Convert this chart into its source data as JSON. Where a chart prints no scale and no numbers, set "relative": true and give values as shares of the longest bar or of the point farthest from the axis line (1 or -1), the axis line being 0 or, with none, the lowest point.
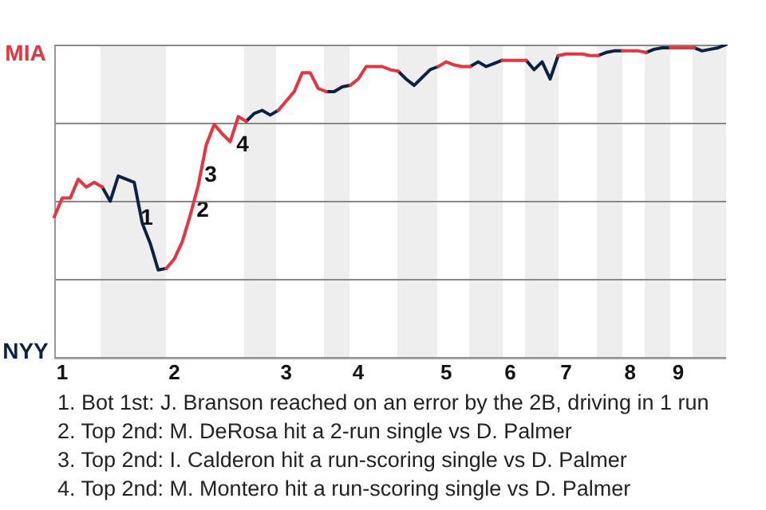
{
  "chart_data": {
    "type": "line",
    "relative": true,
    "categories": [
      null,
      "1",
      null,
      null,
      null,
      null,
      null,
      null,
      null,
      null,
      null,
      null,
      null,
      null,
      null,
      "2",
      null,
      null,
      null,
      null,
      null,
      null,
      null,
      null,
      null,
      null,
      null,
      null,
      null,
      "3",
      null,
      null,
      null,
      null,
      null,
      null,
      null,
      null,
      "4",
      null,
      null,
      null,
      null,
      null,
      null,
      null,
      null,
      null,
      null,
      "5",
      null,
      null,
      null,
      null,
      null,
      null,
      null,
      "6",
      null,
      null,
      null,
      null,
      null,
      null,
      "7",
      null,
      null,
      null,
      null,
      null,
      null,
      null,
      "8",
      null,
      null,
      null,
      null,
      null,
      "9",
      null,
      null,
      null,
      null,
      null,
      null
    ],
    "grid": "y",
    "legend": false,
    "marker": "none",
    "line_style": "solid",
    "series": [
      {
        "color": "#e8343f",
        "values": [
          0.45,
          0.51,
          0.51,
          0.57,
          0.545,
          0.56,
          0.545,
          null,
          null,
          null,
          null,
          null,
          null,
          null,
          0.285,
          0.315,
          0.37,
          0.455,
          0.55,
          0.68,
          0.745,
          0.715,
          0.69,
          0.77,
          0.755,
          null,
          null,
          null,
          0.79,
          0.82,
          0.85,
          0.91,
          0.91,
          0.86,
          0.85,
          null,
          null,
          0.87,
          0.89,
          0.93,
          0.93,
          0.93,
          0.92,
          0.915,
          null,
          null,
          null,
          null,
          0.93,
          0.945,
          0.935,
          0.93,
          0.93,
          null,
          null,
          null,
          0.95,
          0.95,
          0.95,
          0.95,
          null,
          null,
          null,
          0.965,
          0.97,
          0.97,
          0.97,
          0.965,
          0.965,
          null,
          null,
          0.98,
          0.98,
          0.98,
          0.975,
          null,
          null,
          0.99,
          0.99,
          0.99,
          0.99,
          null,
          null,
          null,
          null
        ]
      },
      {
        "color": "#0c2340",
        "values": [
          null,
          null,
          null,
          null,
          null,
          null,
          0.545,
          0.5,
          0.58,
          0.57,
          0.56,
          0.43,
          0.365,
          0.28,
          0.285,
          null,
          null,
          null,
          null,
          null,
          null,
          null,
          null,
          null,
          0.755,
          0.78,
          0.79,
          0.775,
          0.79,
          null,
          null,
          null,
          null,
          null,
          0.85,
          0.85,
          0.865,
          0.87,
          null,
          null,
          null,
          null,
          null,
          0.915,
          0.89,
          0.87,
          0.895,
          0.92,
          0.93,
          null,
          null,
          null,
          0.93,
          0.945,
          0.93,
          0.94,
          0.95,
          null,
          null,
          0.95,
          0.92,
          0.945,
          0.89,
          0.965,
          null,
          null,
          null,
          null,
          0.965,
          0.975,
          0.98,
          0.98,
          null,
          null,
          0.975,
          0.985,
          0.99,
          0.99,
          null,
          null,
          0.99,
          0.98,
          0.985,
          0.99,
          1.0
        ]
      }
    ],
    "annotations": [
      "MIA",
      "NYY",
      "1",
      "2",
      "3",
      "4",
      "1. Bot 1st: J. Branson reached on an error by the 2B, driving in 1 run",
      "2. Top 2nd: M. DeRosa hit a 2-run single vs D. Palmer",
      "3. Top 2nd: I. Calderon hit a run-scoring single vs D. Palmer",
      "4. Top 2nd: M. Montero hit a run-scoring single vs D. Palmer"
    ]
  }
}
